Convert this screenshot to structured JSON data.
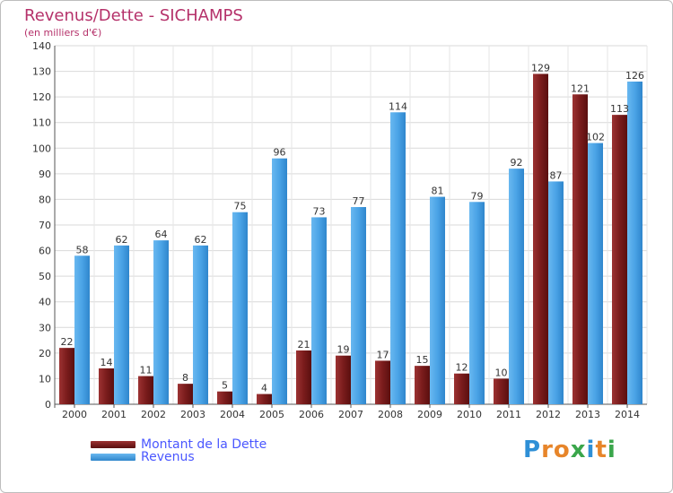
{
  "chart_data": {
    "type": "bar",
    "title": "Revenus/Dette - SICHAMPS",
    "subtitle": "(en milliers d'€)",
    "categories": [
      "2000",
      "2001",
      "2002",
      "2003",
      "2004",
      "2005",
      "2006",
      "2007",
      "2008",
      "2009",
      "2010",
      "2011",
      "2012",
      "2013",
      "2014"
    ],
    "series": [
      {
        "name": "Montant de la Dette",
        "color": "#7a1c1c",
        "values": [
          22,
          14,
          11,
          8,
          5,
          4,
          21,
          19,
          17,
          15,
          12,
          10,
          129,
          121,
          113
        ]
      },
      {
        "name": "Revenus",
        "color": "#4aa3e6",
        "values": [
          58,
          62,
          64,
          62,
          75,
          96,
          73,
          77,
          114,
          81,
          79,
          92,
          87,
          102,
          126
        ]
      }
    ],
    "ylim": [
      0,
      140
    ],
    "yticks": [
      0,
      10,
      20,
      30,
      40,
      50,
      60,
      70,
      80,
      90,
      100,
      110,
      120,
      130,
      140
    ],
    "grid": true,
    "legend_position": "bottom-left"
  },
  "logo": {
    "letters": [
      {
        "ch": "P",
        "color": "#2e8fd6"
      },
      {
        "ch": "r",
        "color": "#e7852a"
      },
      {
        "ch": "o",
        "color": "#e7852a"
      },
      {
        "ch": "x",
        "color": "#3aa64b"
      },
      {
        "ch": "i",
        "color": "#2e8fd6"
      },
      {
        "ch": "t",
        "color": "#e7852a"
      },
      {
        "ch": "i",
        "color": "#3aa64b"
      }
    ]
  }
}
